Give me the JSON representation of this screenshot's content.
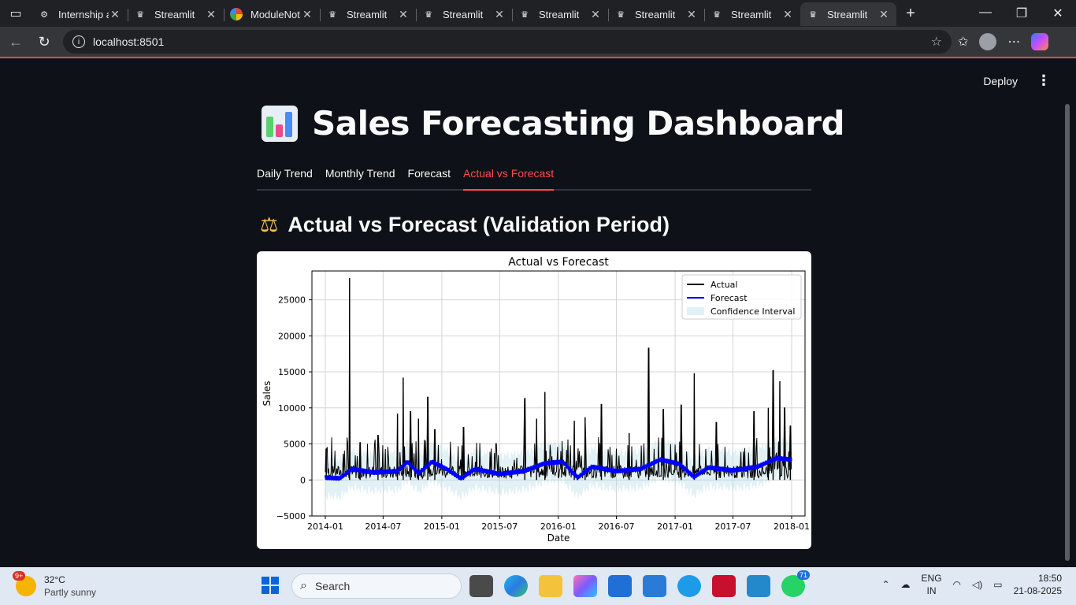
{
  "browser": {
    "tabs": [
      {
        "label": "Internship a",
        "favicon": "openai-icon",
        "active": false
      },
      {
        "label": "Streamlit",
        "favicon": "streamlit-crown-icon",
        "active": false
      },
      {
        "label": "ModuleNot",
        "favicon": "google-icon",
        "active": false
      },
      {
        "label": "Streamlit",
        "favicon": "streamlit-crown-icon",
        "active": false
      },
      {
        "label": "Streamlit",
        "favicon": "streamlit-crown-icon",
        "active": false
      },
      {
        "label": "Streamlit",
        "favicon": "streamlit-crown-icon",
        "active": false
      },
      {
        "label": "Streamlit",
        "favicon": "streamlit-crown-icon",
        "active": false
      },
      {
        "label": "Streamlit",
        "favicon": "streamlit-crown-icon",
        "active": false
      },
      {
        "label": "Streamlit",
        "favicon": "streamlit-crown-icon",
        "active": true
      }
    ],
    "url": "localhost:8501"
  },
  "app": {
    "deploy_label": "Deploy",
    "title": "Sales Forecasting Dashboard",
    "tabs": [
      "Daily Trend",
      "Monthly Trend",
      "Forecast",
      "Actual vs Forecast"
    ],
    "active_tab": 3,
    "section_title": "Actual vs Forecast (Validation Period)",
    "accent_color": "#ff4b4b"
  },
  "chart_data": {
    "type": "line",
    "title": "Actual vs Forecast",
    "xlabel": "Date",
    "ylabel": "Sales",
    "xlim": [
      "2013-11-20",
      "2018-02-12"
    ],
    "ylim": [
      -5000,
      29000
    ],
    "x_ticks": [
      "2014-01",
      "2014-07",
      "2015-01",
      "2015-07",
      "2016-01",
      "2016-07",
      "2017-01",
      "2017-07",
      "2018-01"
    ],
    "y_ticks": [
      -5000,
      0,
      5000,
      10000,
      15000,
      20000,
      25000
    ],
    "grid": true,
    "legend": {
      "position": "top-right",
      "entries": [
        "Actual",
        "Forecast",
        "Confidence Interval"
      ]
    },
    "series": [
      {
        "name": "Actual",
        "color": "#000000",
        "peaks": [
          {
            "x": "2014-01-04",
            "y": 4300
          },
          {
            "x": "2014-03-18",
            "y": 28000
          },
          {
            "x": "2014-04-20",
            "y": 5200
          },
          {
            "x": "2014-06-15",
            "y": 6200
          },
          {
            "x": "2014-08-15",
            "y": 9200
          },
          {
            "x": "2014-09-02",
            "y": 14200
          },
          {
            "x": "2014-09-25",
            "y": 9500
          },
          {
            "x": "2014-10-20",
            "y": 8500
          },
          {
            "x": "2014-11-18",
            "y": 11500
          },
          {
            "x": "2014-12-10",
            "y": 7000
          },
          {
            "x": "2015-03-10",
            "y": 7300
          },
          {
            "x": "2015-09-18",
            "y": 11300
          },
          {
            "x": "2015-10-25",
            "y": 8500
          },
          {
            "x": "2015-11-20",
            "y": 12200
          },
          {
            "x": "2016-02-20",
            "y": 8200
          },
          {
            "x": "2016-03-25",
            "y": 8700
          },
          {
            "x": "2016-05-15",
            "y": 10500
          },
          {
            "x": "2016-08-10",
            "y": 6500
          },
          {
            "x": "2016-10-10",
            "y": 18300
          },
          {
            "x": "2016-11-25",
            "y": 9800
          },
          {
            "x": "2017-01-20",
            "y": 10400
          },
          {
            "x": "2017-03-02",
            "y": 14800
          },
          {
            "x": "2017-05-10",
            "y": 8000
          },
          {
            "x": "2017-09-05",
            "y": 9500
          },
          {
            "x": "2017-10-20",
            "y": 10000
          },
          {
            "x": "2017-11-04",
            "y": 15200
          },
          {
            "x": "2017-11-25",
            "y": 13700
          },
          {
            "x": "2017-12-10",
            "y": 10000
          },
          {
            "x": "2017-12-28",
            "y": 7500
          }
        ]
      },
      {
        "name": "Forecast",
        "color": "#0000ff",
        "points": [
          {
            "x": "2014-01-01",
            "y": 300
          },
          {
            "x": "2014-02-15",
            "y": 200
          },
          {
            "x": "2014-03-25",
            "y": 1500
          },
          {
            "x": "2014-06-01",
            "y": 1000
          },
          {
            "x": "2014-08-15",
            "y": 1200
          },
          {
            "x": "2014-09-15",
            "y": 2500
          },
          {
            "x": "2014-10-20",
            "y": 900
          },
          {
            "x": "2014-12-01",
            "y": 2500
          },
          {
            "x": "2015-01-15",
            "y": 1500
          },
          {
            "x": "2015-03-01",
            "y": 200
          },
          {
            "x": "2015-04-15",
            "y": 1500
          },
          {
            "x": "2015-07-01",
            "y": 800
          },
          {
            "x": "2015-09-15",
            "y": 1200
          },
          {
            "x": "2015-11-20",
            "y": 2300
          },
          {
            "x": "2016-01-15",
            "y": 2500
          },
          {
            "x": "2016-03-01",
            "y": 300
          },
          {
            "x": "2016-04-15",
            "y": 1800
          },
          {
            "x": "2016-07-01",
            "y": 1200
          },
          {
            "x": "2016-09-15",
            "y": 1500
          },
          {
            "x": "2016-11-15",
            "y": 2800
          },
          {
            "x": "2017-01-15",
            "y": 2200
          },
          {
            "x": "2017-03-01",
            "y": 400
          },
          {
            "x": "2017-04-15",
            "y": 1700
          },
          {
            "x": "2017-07-01",
            "y": 1300
          },
          {
            "x": "2017-09-15",
            "y": 1800
          },
          {
            "x": "2017-11-15",
            "y": 3000
          },
          {
            "x": "2017-12-31",
            "y": 2800
          }
        ]
      },
      {
        "name": "Confidence Interval",
        "color": "#add8e6",
        "offset_band": [
          -2600,
          2600
        ]
      }
    ]
  },
  "taskbar": {
    "weather_temp": "32°C",
    "weather_desc": "Partly sunny",
    "weather_badge": "9+",
    "search_placeholder": "Search",
    "whatsapp_badge": "71",
    "lang_top": "ENG",
    "lang_bottom": "IN",
    "time": "18:50",
    "date": "21-08-2025"
  }
}
